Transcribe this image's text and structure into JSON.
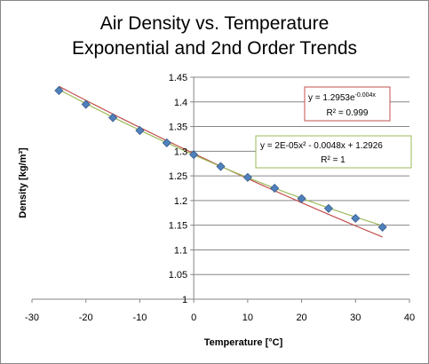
{
  "title_line1": "Air Density vs. Temperature",
  "title_line2": "Exponential and 2nd Order Trends",
  "chart_data": {
    "type": "scatter",
    "xlabel": "Temperature [°C]",
    "ylabel": "Density [kg/m³]",
    "xlim": [
      -30,
      40
    ],
    "ylim": [
      1,
      1.45
    ],
    "xticks": [
      "-30",
      "-20",
      "-10",
      "0",
      "10",
      "20",
      "30",
      "40"
    ],
    "yticks": [
      "1",
      "1.05",
      "1.1",
      "1.15",
      "1.2",
      "1.25",
      "1.3",
      "1.35",
      "1.4",
      "1.45"
    ],
    "grid": "horizontal",
    "series": [
      {
        "marker": "diamond",
        "color": "#4F81BD",
        "x": [
          -25,
          -20,
          -15,
          -10,
          -5,
          0,
          5,
          10,
          15,
          20,
          25,
          30,
          35
        ],
        "y": [
          1.423,
          1.395,
          1.368,
          1.342,
          1.317,
          1.293,
          1.269,
          1.247,
          1.225,
          1.204,
          1.184,
          1.164,
          1.146
        ]
      }
    ],
    "trendlines": [
      {
        "kind": "exponential",
        "a": 1.2953,
        "b": -0.004,
        "color": "#C0504D"
      },
      {
        "kind": "polynomial",
        "coefficients": [
          1.2926,
          -0.0048,
          2e-05
        ],
        "color": "#9BBB59"
      }
    ],
    "annotations": {
      "exp": {
        "eq_main": "y = 1.2953e",
        "eq_exp": "-0.004x",
        "r2": "R² = 0.999",
        "border": "#C0504D"
      },
      "poly": {
        "eq": "y = 2E-05x² - 0.0048x + 1.2926",
        "r2": "R² = 1",
        "border": "#9BBB59"
      }
    }
  }
}
